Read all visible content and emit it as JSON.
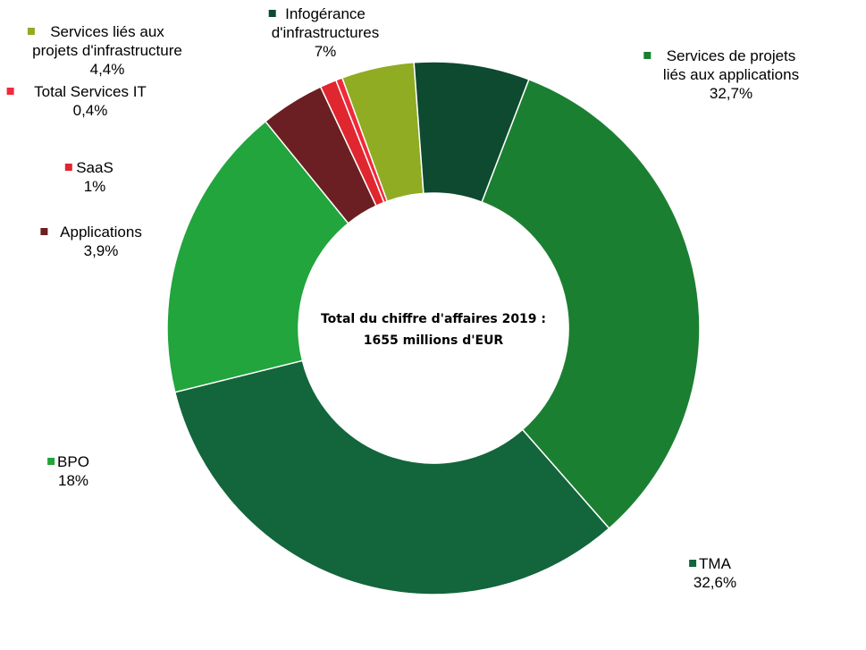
{
  "chart_data": {
    "type": "pie",
    "donut": true,
    "center_text": [
      "Total du chiffre d'affaires 2019 :",
      "1655 millions d'EUR"
    ],
    "slices": [
      {
        "label": [
          "Services de projets",
          "liés aux applications"
        ],
        "value_label": "32,7%",
        "value": 32.7,
        "color": "#1b7f32"
      },
      {
        "label": [
          "TMA"
        ],
        "value_label": "32,6%",
        "value": 32.6,
        "color": "#13653b"
      },
      {
        "label": [
          "BPO"
        ],
        "value_label": "18%",
        "value": 18.0,
        "color": "#21a53c"
      },
      {
        "label": [
          "Applications"
        ],
        "value_label": "3,9%",
        "value": 3.9,
        "color": "#6b1f22"
      },
      {
        "label": [
          "SaaS"
        ],
        "value_label": "1%",
        "value": 1.0,
        "color": "#e0262f"
      },
      {
        "label": [
          "Total  Services IT"
        ],
        "value_label": "0,4%",
        "value": 0.4,
        "color": "#f02a3a"
      },
      {
        "label": [
          "Services liés aux",
          "projets d'infrastructure"
        ],
        "value_label": "4,4%",
        "value": 4.4,
        "color": "#8fac22"
      },
      {
        "label": [
          "Infogérance",
          "d'infrastructures"
        ],
        "value_label": "7%",
        "value": 7.0,
        "color": "#0e4a30"
      }
    ],
    "legend_placement": "around"
  }
}
